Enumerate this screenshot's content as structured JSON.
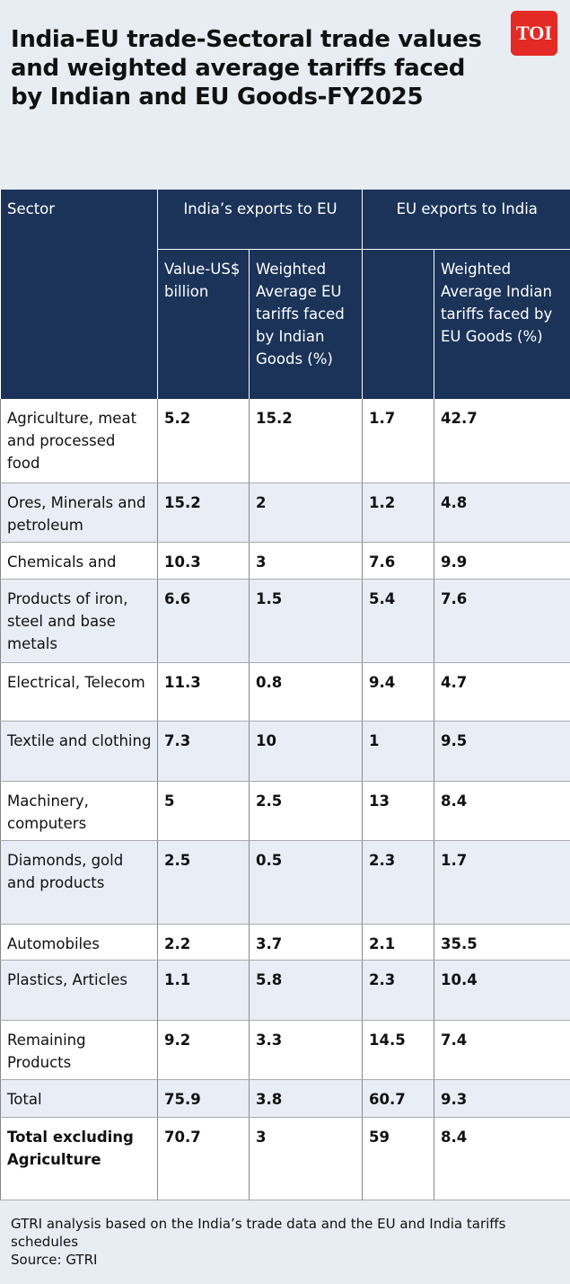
{
  "header": {
    "title": "India-EU trade-Sectoral trade values and weighted average tariffs faced by Indian and EU Goods-FY2025",
    "logo": "TOI"
  },
  "table": {
    "header_top": [
      "Sector",
      "India’s exports to EU",
      "EU exports to India"
    ],
    "header_sub": [
      "Value-US$ billion",
      "Weighted Average EU tariffs faced by Indian Goods (%)",
      "Weighted Average Indian tariffs faced by EU Goods (%)"
    ],
    "rows": [
      [
        "Agriculture, meat and processed food",
        "5.2",
        "15.2",
        "1.7",
        "42.7"
      ],
      [
        "Ores, Minerals and petroleum",
        "15.2",
        "2",
        "1.2",
        "4.8"
      ],
      [
        "Chemicals and",
        "10.3",
        "3",
        "7.6",
        "9.9"
      ],
      [
        "Products of iron, steel and base metals",
        "6.6",
        "1.5",
        "5.4",
        "7.6"
      ],
      [
        "Electrical, Telecom",
        "11.3",
        "0.8",
        "9.4",
        "4.7"
      ],
      [
        "Textile and clothing",
        "7.3",
        "10",
        "1",
        "9.5"
      ],
      [
        "Machinery, computers",
        "5",
        "2.5",
        "13",
        "8.4"
      ],
      [
        "Diamonds, gold and products",
        "2.5",
        "0.5",
        "2.3",
        "1.7"
      ],
      [
        "Automobiles",
        "2.2",
        "3.7",
        "2.1",
        "35.5"
      ],
      [
        "Plastics, Articles",
        "1.1",
        "5.8",
        "2.3",
        "10.4"
      ],
      [
        "Remaining Products",
        "9.2",
        "3.3",
        "14.5",
        "7.4"
      ],
      [
        "Total",
        "75.9",
        "3.8",
        "60.7",
        "9.3"
      ],
      [
        "Total excluding Agriculture",
        "70.7",
        "3",
        "59",
        "8.4"
      ]
    ]
  },
  "footer": {
    "note": "GTRI analysis based on the India’s trade data and the EU and India tariffs schedules",
    "source": "Source: GTRI"
  }
}
